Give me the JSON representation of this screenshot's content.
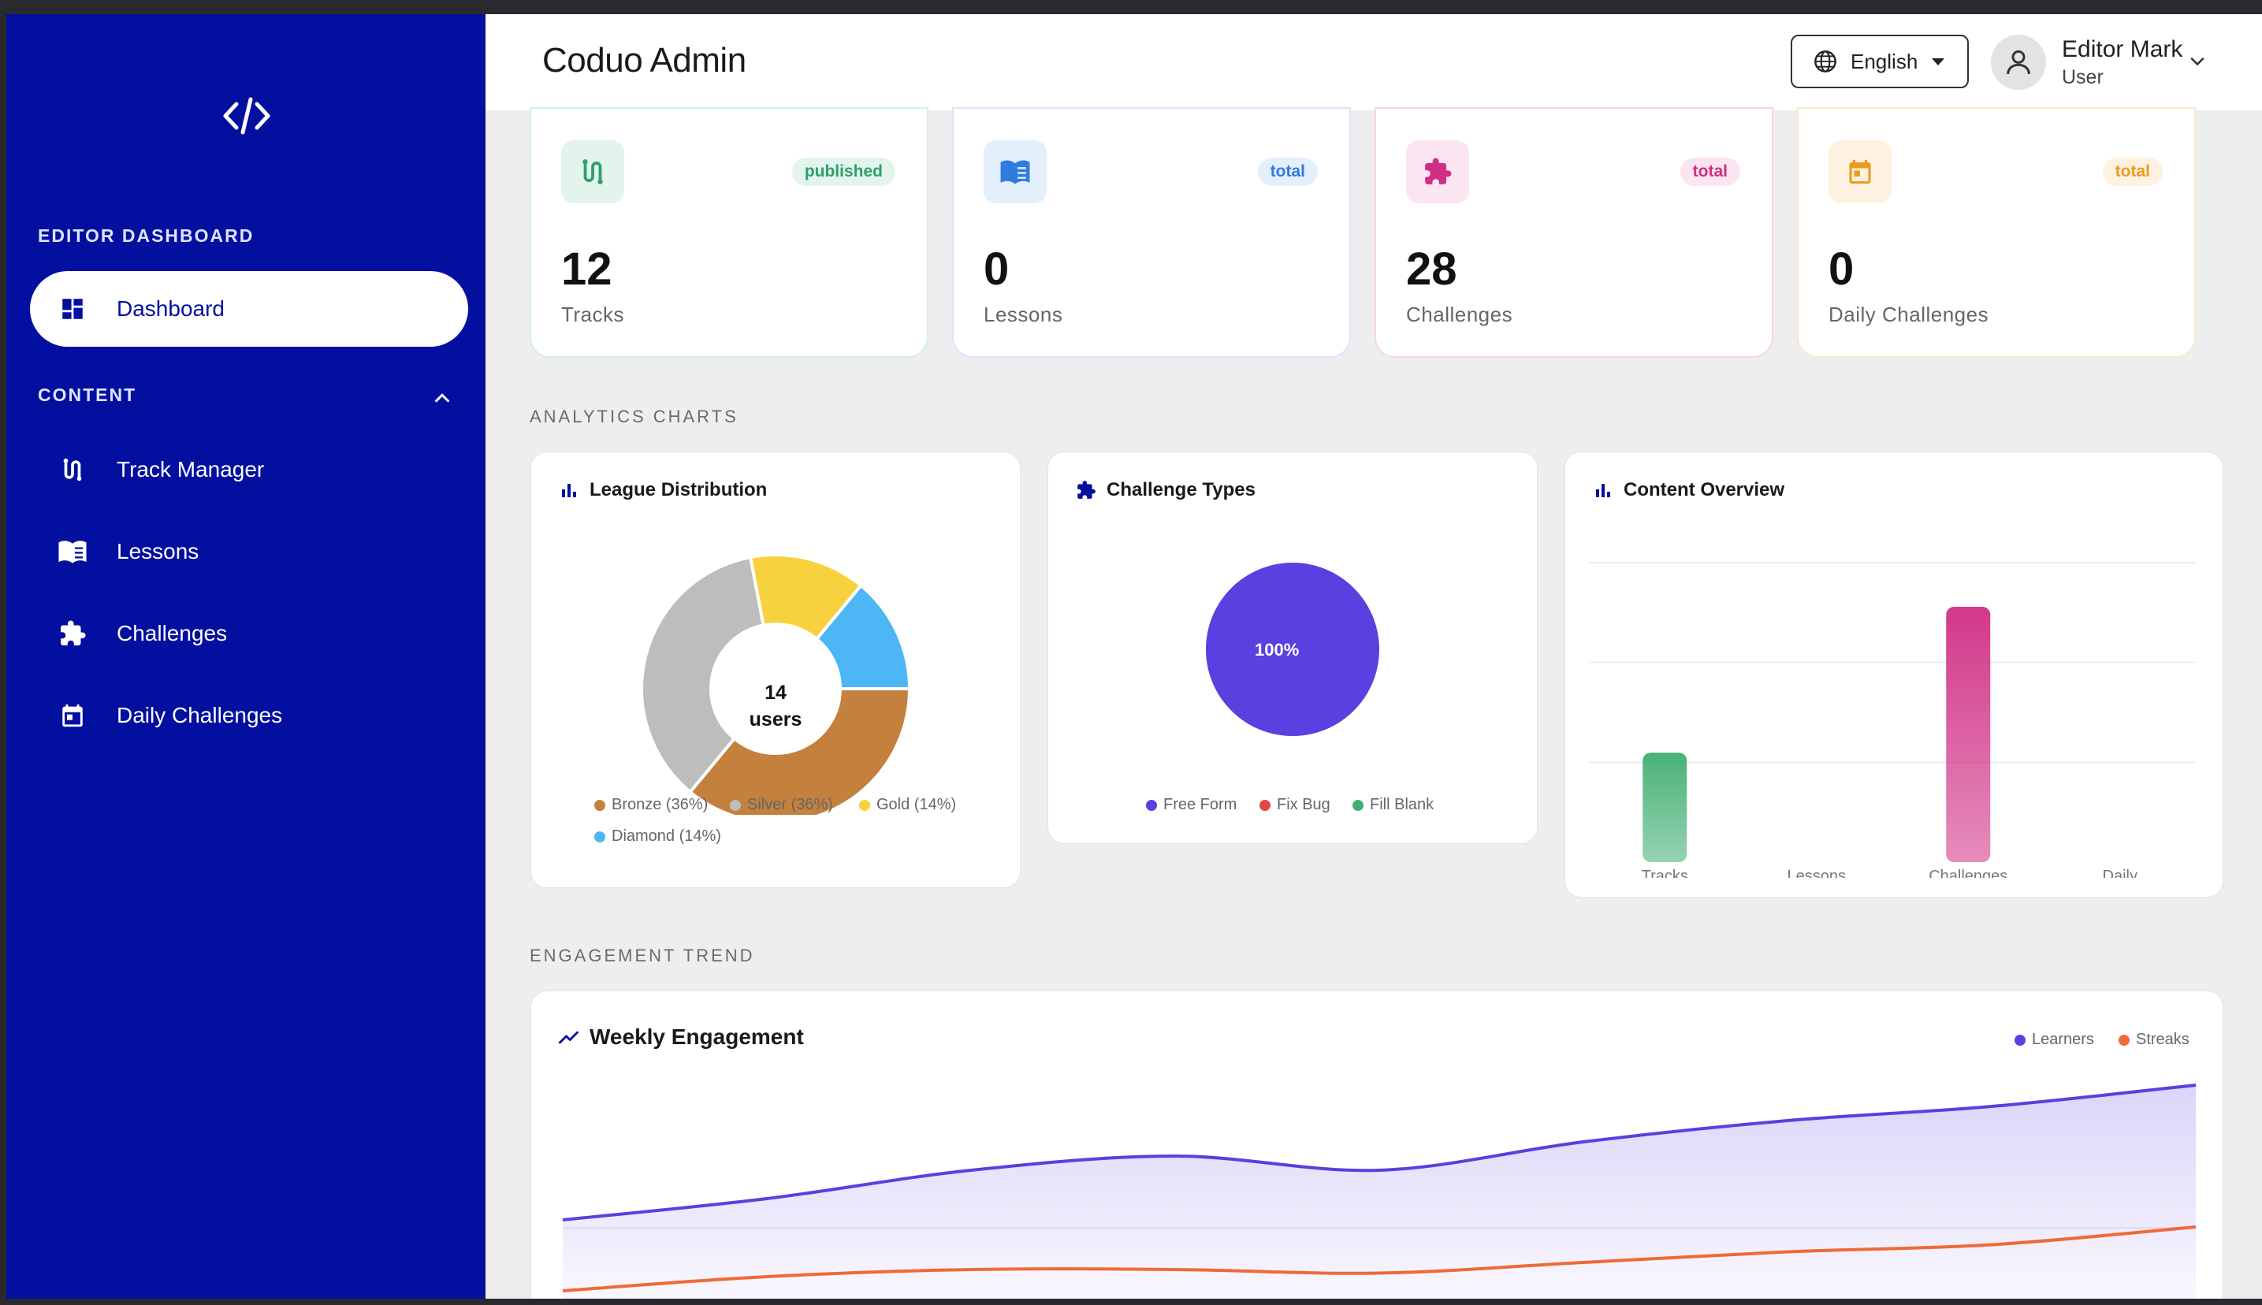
{
  "app": {
    "title": "Coduo Admin"
  },
  "sidebar": {
    "logo_icon": "code-icon",
    "section_dashboard": "EDITOR DASHBOARD",
    "section_content": "CONTENT",
    "items": [
      {
        "label": "Dashboard",
        "icon": "dashboard-icon",
        "active": true
      },
      {
        "label": "Track Manager",
        "icon": "route-icon"
      },
      {
        "label": "Lessons",
        "icon": "book-icon"
      },
      {
        "label": "Challenges",
        "icon": "puzzle-icon"
      },
      {
        "label": "Daily Challenges",
        "icon": "calendar-icon"
      }
    ]
  },
  "header": {
    "language": "English",
    "user_name": "Editor Mark",
    "user_role": "User"
  },
  "stats": [
    {
      "value": "12",
      "label": "Tracks",
      "badge": "published",
      "color": "#2e9f6b",
      "bg": "#e3f4ec"
    },
    {
      "value": "0",
      "label": "Lessons",
      "badge": "total",
      "color": "#2f7be0",
      "bg": "#e4effc"
    },
    {
      "value": "28",
      "label": "Challenges",
      "badge": "total",
      "color": "#d02e84",
      "bg": "#fbe5f0"
    },
    {
      "value": "0",
      "label": "Daily Challenges",
      "badge": "total",
      "color": "#ee9a1d",
      "bg": "#fdf2e1"
    }
  ],
  "sections": {
    "analytics": "ANALYTICS CHARTS",
    "engagement": "ENGAGEMENT TREND"
  },
  "chart_data": [
    {
      "type": "pie",
      "title": "League Distribution",
      "center_value": "14",
      "center_label": "users",
      "categories": [
        "Bronze (36%)",
        "Silver (36%)",
        "Gold (14%)",
        "Diamond (14%)"
      ],
      "values": [
        36,
        36,
        14,
        14
      ],
      "colors": [
        "#c4803d",
        "#bdbdbd",
        "#f7d23e",
        "#4db6f5"
      ]
    },
    {
      "type": "pie",
      "title": "Challenge Types",
      "slice_label": "100%",
      "categories": [
        "Free Form",
        "Fix Bug",
        "Fill Blank"
      ],
      "values": [
        100,
        0,
        0
      ],
      "colors": [
        "#5b3fe0",
        "#e04848",
        "#3fae70"
      ]
    },
    {
      "type": "bar",
      "title": "Content Overview",
      "categories": [
        "Tracks",
        "Lessons",
        "Challenges",
        "Daily"
      ],
      "values": [
        12,
        0,
        28,
        0
      ],
      "ylim": [
        0,
        30
      ],
      "colors": [
        "#3fae70",
        "#2f7be0",
        "#d02e84",
        "#ee9a1d"
      ]
    },
    {
      "type": "area",
      "title": "Weekly Engagement",
      "series": [
        {
          "name": "Learners",
          "color": "#5b3fe0",
          "values": [
            10,
            13,
            17,
            19,
            17,
            21,
            24,
            26,
            29
          ]
        },
        {
          "name": "Streaks",
          "color": "#ee6a36",
          "values": [
            0,
            2,
            3,
            3,
            2.5,
            4,
            5.5,
            6.5,
            9
          ]
        }
      ],
      "ylim": [
        0,
        30
      ]
    }
  ]
}
